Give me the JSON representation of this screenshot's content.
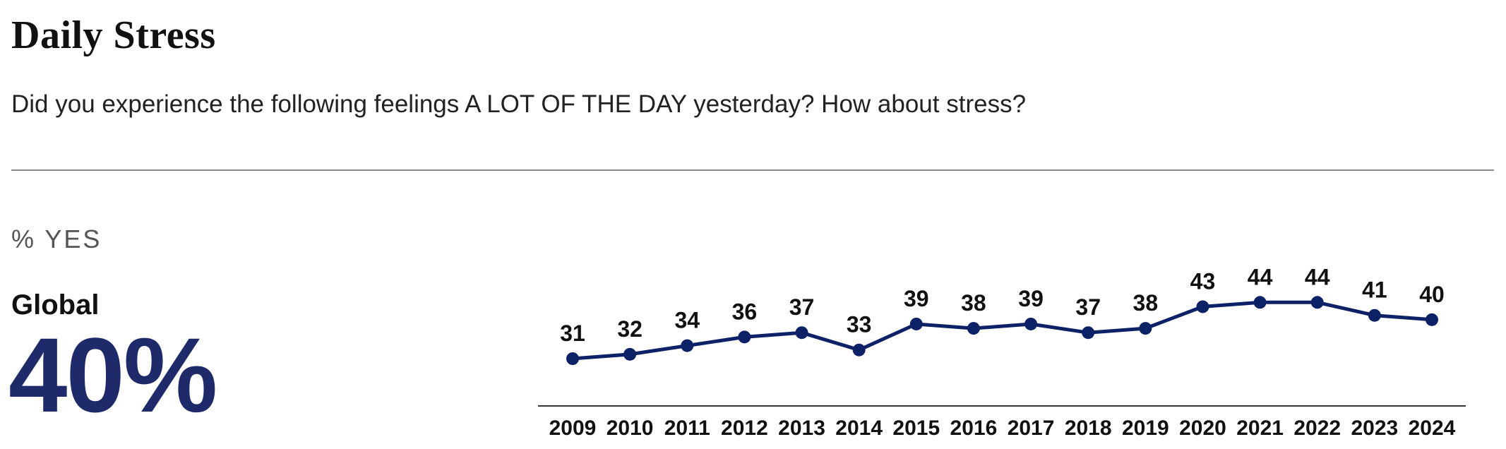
{
  "header": {
    "title": "Daily Stress",
    "subtitle": "Did you experience the following feelings A LOT OF THE DAY yesterday? How about stress?"
  },
  "summary": {
    "unit_label": "% YES",
    "region": "Global",
    "value": "40%"
  },
  "colors": {
    "line": "#0d2167",
    "axis": "#333333"
  },
  "chart_data": {
    "type": "line",
    "title": "Daily Stress",
    "subtitle": "Did you experience the following feelings A LOT OF THE DAY yesterday? How about stress?",
    "ylabel": "% YES",
    "xlabel": "",
    "x": [
      "2009",
      "2010",
      "2011",
      "2012",
      "2013",
      "2014",
      "2015",
      "2016",
      "2017",
      "2018",
      "2019",
      "2020",
      "2021",
      "2022",
      "2023",
      "2024"
    ],
    "series": [
      {
        "name": "Global",
        "values": [
          31,
          32,
          34,
          36,
          37,
          33,
          39,
          38,
          39,
          37,
          38,
          43,
          44,
          44,
          41,
          40
        ]
      }
    ],
    "data_labels": true,
    "grid": false,
    "legend": "none"
  }
}
